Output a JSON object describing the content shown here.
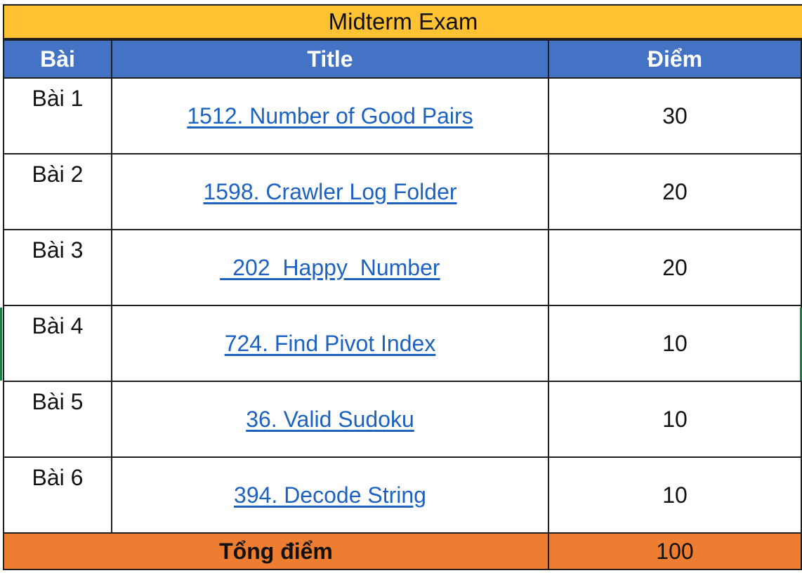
{
  "sheet": {
    "title": "Midterm Exam",
    "headers": {
      "lesson": "Bài",
      "title": "Title",
      "score": "Điểm"
    },
    "rows": [
      {
        "lesson": "Bài 1",
        "title": "1512. Number of Good Pairs",
        "score": "30"
      },
      {
        "lesson": "Bài 2",
        "title": "1598. Crawler Log Folder",
        "score": "20"
      },
      {
        "lesson": "Bài 3",
        "title": "_202_Happy_Number",
        "score": "20"
      },
      {
        "lesson": "Bài 4",
        "title": "724. Find Pivot Index",
        "score": "10"
      },
      {
        "lesson": "Bài 5",
        "title": "36. Valid Sudoku",
        "score": "10"
      },
      {
        "lesson": "Bài 6",
        "title": "394. Decode String",
        "score": "10"
      }
    ],
    "total": {
      "label": "Tổng điểm",
      "value": "100"
    }
  },
  "colors": {
    "title_fill": "#fec232",
    "header_fill": "#4472c4",
    "total_fill": "#ed7d31",
    "link": "#1d62c0"
  }
}
